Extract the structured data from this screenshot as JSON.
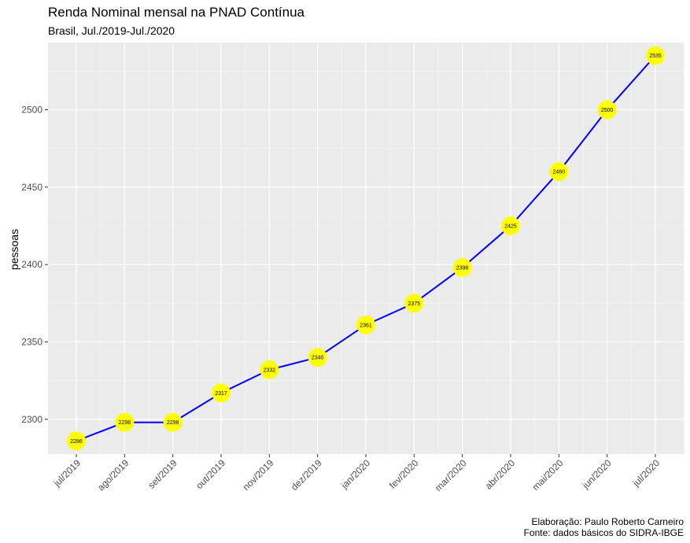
{
  "chart_data": {
    "type": "line",
    "title": "Renda Nominal mensal na PNAD Contínua",
    "subtitle": "Brasil, Jul./2019-Jul./2020",
    "xlabel": "",
    "ylabel": "pessoas",
    "categories": [
      "jul/2019",
      "ago/2019",
      "set/2019",
      "out/2019",
      "nov/2019",
      "dez/2019",
      "jan/2020",
      "fev/2020",
      "mar/2020",
      "abr/2020",
      "mai/2020",
      "jun/2020",
      "jul/2020"
    ],
    "series": [
      {
        "values": [
          2286,
          2298,
          2298,
          2317,
          2332,
          2340,
          2361,
          2375,
          2398,
          2425,
          2460,
          2500,
          2535
        ]
      }
    ],
    "ylim": [
      2277.5,
      2543.5
    ],
    "yticks": [
      2300,
      2350,
      2400,
      2450,
      2500
    ],
    "grid": true,
    "line_color": "#0000ff",
    "point_color": "#ffff00",
    "panel_color": "#ebebeb"
  },
  "caption": {
    "line1": "Elaboração: Paulo Roberto Carneiro",
    "line2": "Fonte: dados básicos do SIDRA-IBGE"
  }
}
